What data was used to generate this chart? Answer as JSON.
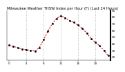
{
  "title": "Milwaukee Weather THSW Index per Hour (F) (Last 24 Hours)",
  "hours": [
    0,
    1,
    2,
    3,
    4,
    5,
    6,
    7,
    8,
    9,
    10,
    11,
    12,
    13,
    14,
    15,
    16,
    17,
    18,
    19,
    20,
    21,
    22,
    23
  ],
  "values": [
    38,
    36,
    34,
    32,
    31,
    30,
    29,
    34,
    46,
    59,
    70,
    78,
    82,
    79,
    75,
    72,
    68,
    63,
    56,
    48,
    42,
    37,
    30,
    22
  ],
  "line_color": "#cc0000",
  "marker_color": "#000000",
  "bg_color": "#ffffff",
  "grid_color": "#999999",
  "title_color": "#000000",
  "ylim_min": 15,
  "ylim_max": 90,
  "title_fontsize": 3.8,
  "tick_fontsize": 3.0,
  "ytick_labels": [
    "90",
    "80",
    "70",
    "60",
    "50",
    "40",
    "30",
    "20"
  ],
  "ytick_values": [
    90,
    80,
    70,
    60,
    50,
    40,
    30,
    20
  ],
  "xtick_step": 4,
  "right_bar_color": "#000000",
  "vgrid_positions": [
    4,
    8,
    12,
    16,
    20
  ]
}
